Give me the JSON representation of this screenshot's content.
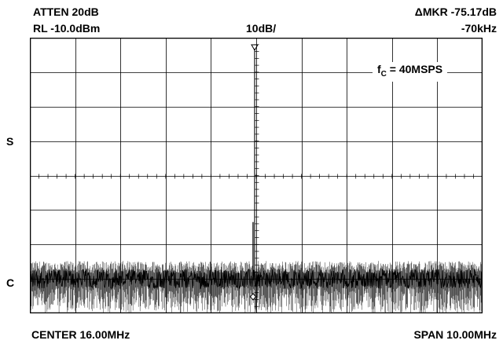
{
  "header": {
    "atten": "ATTEN  20dB",
    "rl": "RL  -10.0dBm",
    "scale": "10dB/",
    "delta_mkr": "ΔMKR  -75.17dB",
    "delta_freq": "-70kHz"
  },
  "side_labels": {
    "s": "S",
    "c": "C"
  },
  "annotation": {
    "f_main": "f",
    "f_sub": "C",
    "f_rest": " = 40MSPS"
  },
  "footer": {
    "center": "CENTER  16.00MHz",
    "span": "SPAN  10.00MHz"
  },
  "chart_data": {
    "type": "line",
    "title": "",
    "center_freq_mhz": 16.0,
    "span_mhz": 10.0,
    "x_range_mhz": [
      11.0,
      21.0
    ],
    "ref_level_dbm": -10.0,
    "scale_db_per_div": 10,
    "y_range_dbm": [
      -90.0,
      -10.0
    ],
    "divisions": {
      "x": 10,
      "y": 8
    },
    "grid": true,
    "noise_floor_dbm": -80.0,
    "noise_peak_dbm": -76.0,
    "spur": {
      "freq_mhz": 15.93,
      "level_dbm": -63.5
    },
    "marker": {
      "freq_mhz": 15.93,
      "level_dbm": -85.17
    },
    "reference_marker": {
      "freq_mhz": 16.0,
      "level_dbm": -10.0
    },
    "delta": {
      "db": -75.17,
      "khz": -70
    }
  },
  "colors": {
    "trace": "#000000",
    "grid": "#000000",
    "background": "#ffffff"
  }
}
